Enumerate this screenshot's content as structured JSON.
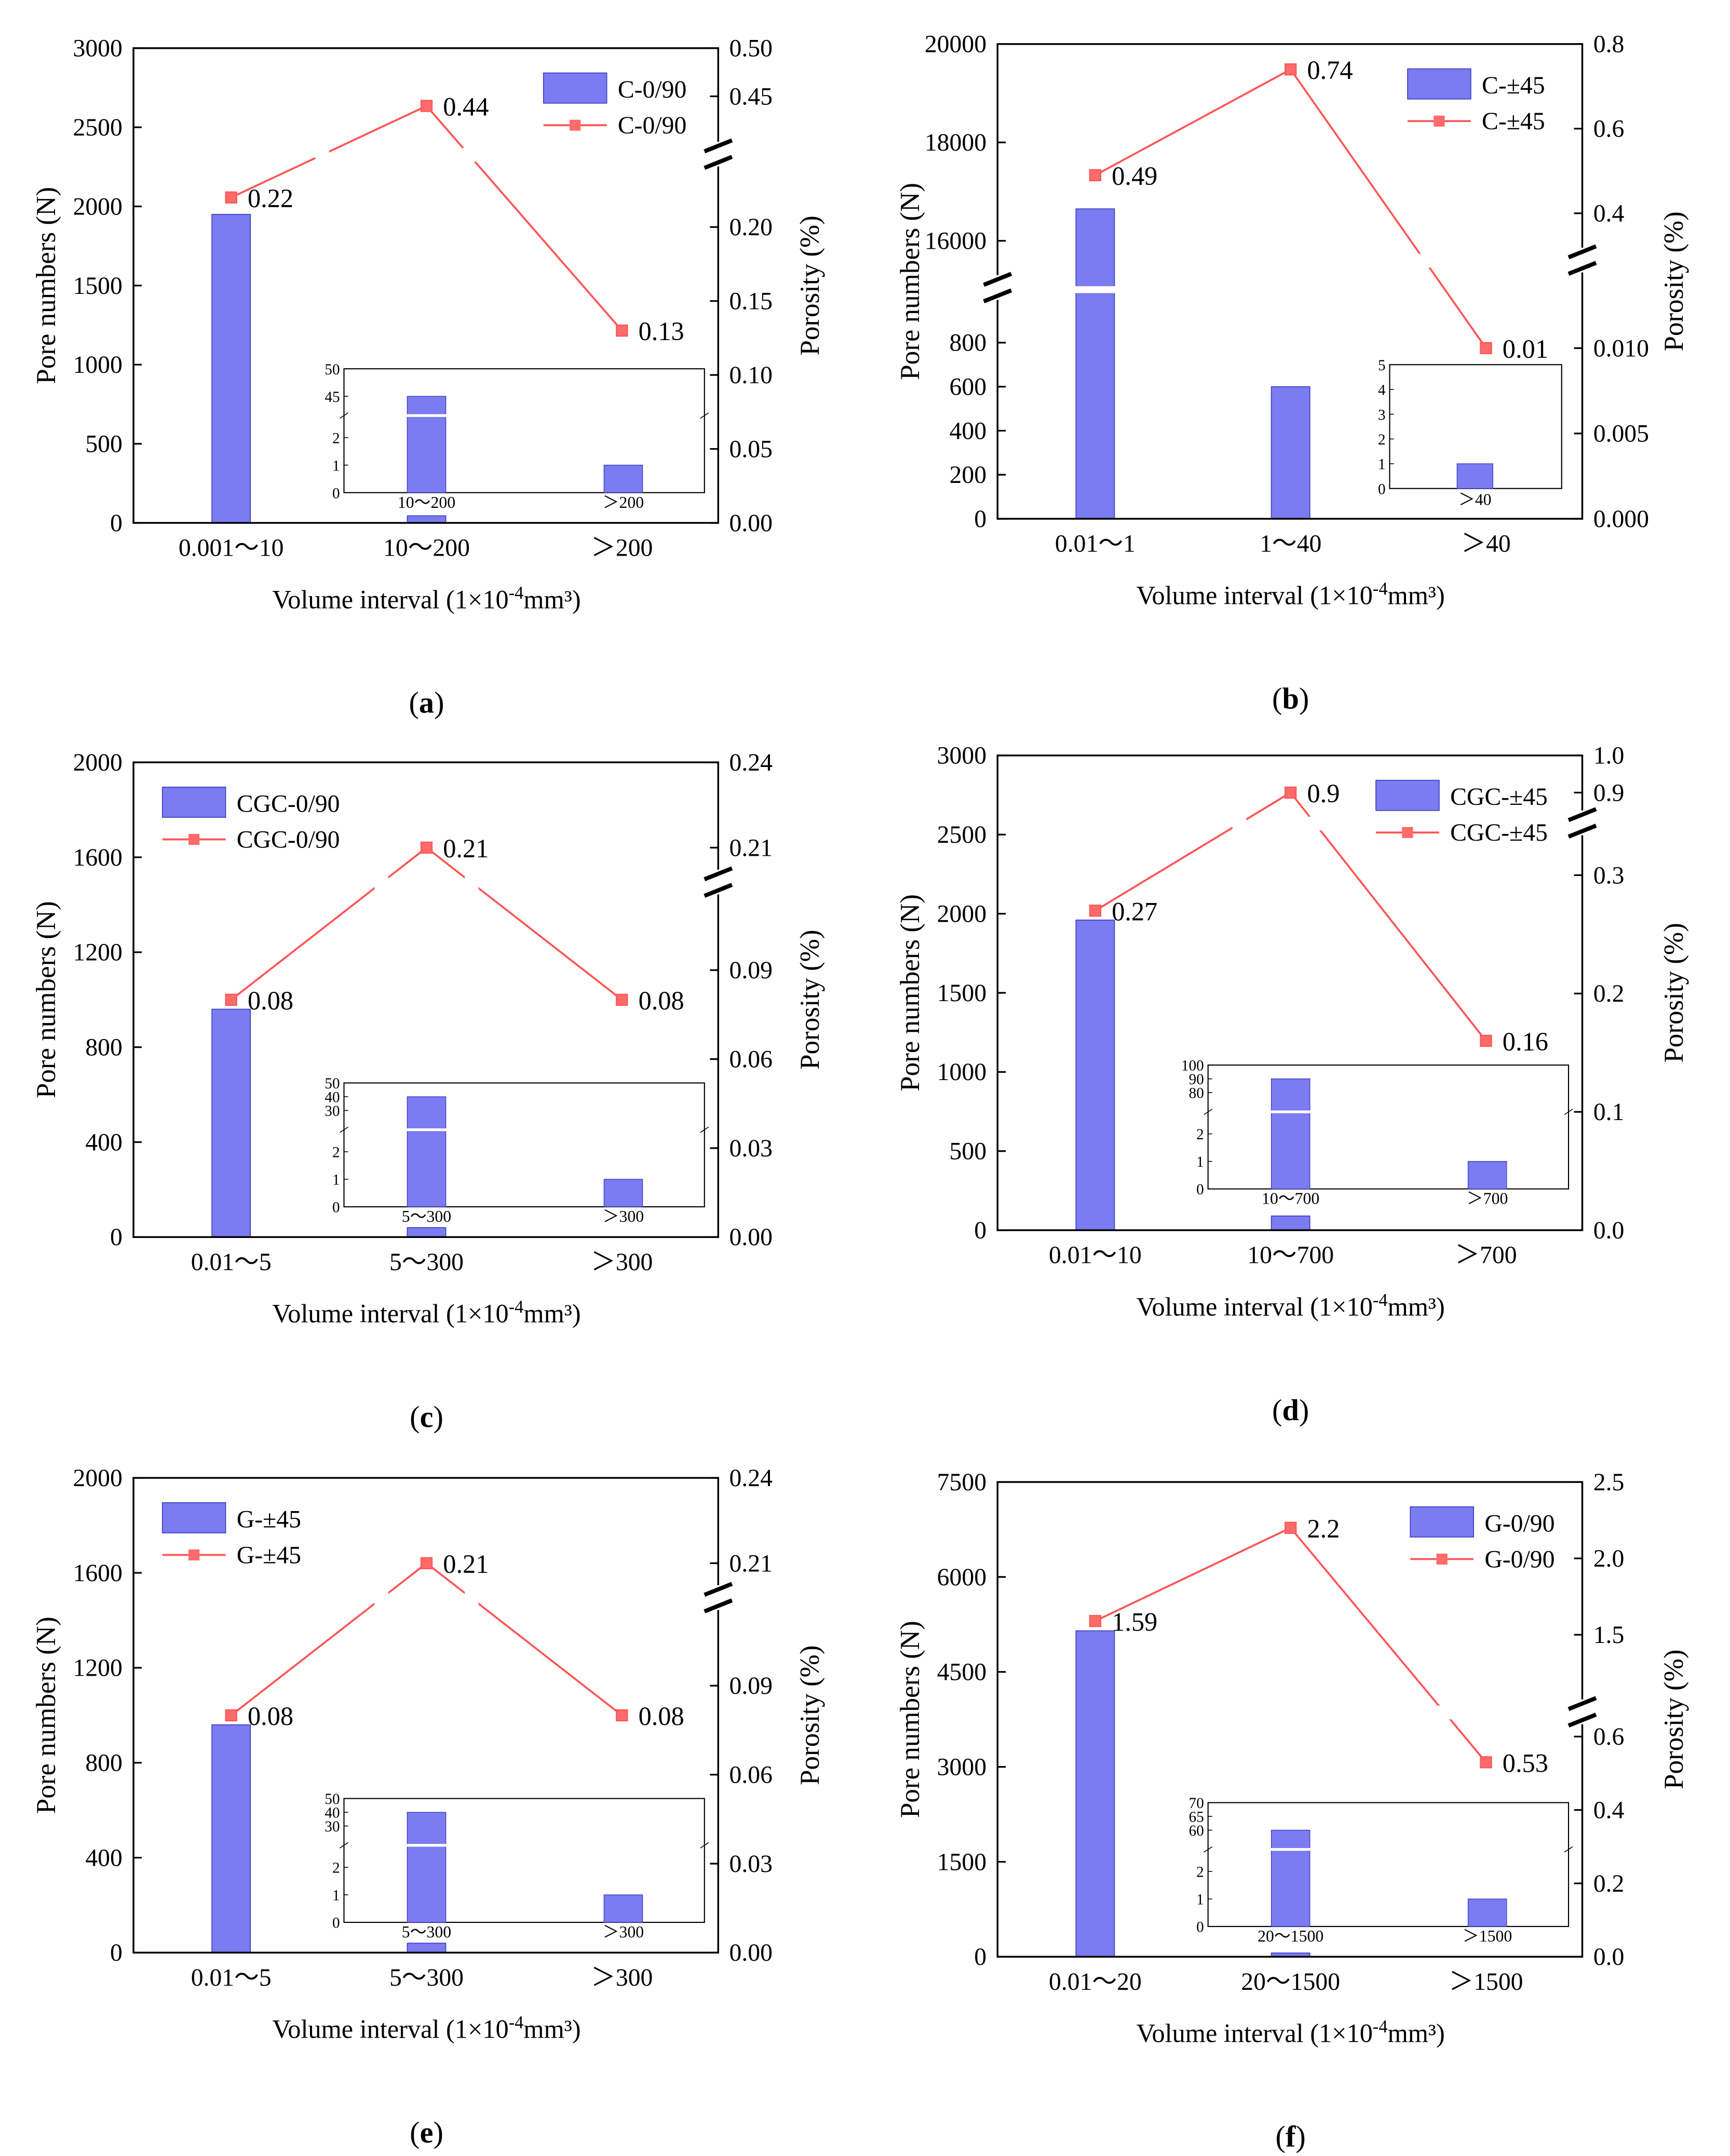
{
  "figure": {
    "xlabel_prefix": "Volume interval (1×10",
    "xlabel_exp": "-4",
    "xlabel_suffix": "mm³)",
    "ylabel_left": "Pore numbers (N)",
    "ylabel_right": "Porosity (%)"
  },
  "colors": {
    "bar": "#7b7bf2",
    "bar_stroke": "#3a3ac0",
    "line": "#ff5555",
    "marker": "#ff6a6a"
  },
  "chart_data": [
    {
      "type": "bar",
      "id": "a",
      "panel_label": "a",
      "categories": [
        "0.001～10",
        "10～200",
        "＞200"
      ],
      "bar_values": [
        1950,
        45,
        1
      ],
      "line_values": [
        0.22,
        0.44,
        0.13
      ],
      "line_labels": [
        "0.22",
        "0.44",
        "0.13"
      ],
      "legend": [
        "C-0/90",
        "C-0/90"
      ],
      "left_ticks": [
        "0",
        "500",
        "1000",
        "1500",
        "2000",
        "2500",
        "3000"
      ],
      "right_ticks_low": [
        "0.00",
        "0.05",
        "0.10",
        "0.15",
        "0.20"
      ],
      "right_ticks_high": [
        "0.45",
        "0.50"
      ],
      "inset": {
        "categories": [
          "10～200",
          "＞200"
        ],
        "values": [
          45,
          1
        ],
        "ticks_low": [
          "0",
          "1",
          "2"
        ],
        "ticks_high": [
          "45",
          "50"
        ]
      }
    },
    {
      "type": "bar",
      "id": "b",
      "panel_label": "b",
      "categories": [
        "0.01～1",
        "1～40",
        "＞40"
      ],
      "bar_values": [
        16650,
        600,
        1
      ],
      "line_values": [
        0.49,
        0.74,
        0.01
      ],
      "line_labels": [
        "0.49",
        "0.74",
        "0.01"
      ],
      "legend": [
        "C-±45",
        "C-±45"
      ],
      "left_ticks_low": [
        "0",
        "200",
        "400",
        "600",
        "800"
      ],
      "left_ticks_high": [
        "16000",
        "18000",
        "20000"
      ],
      "right_ticks_low": [
        "0.000",
        "0.005",
        "0.010"
      ],
      "right_ticks_high": [
        "0.4",
        "0.6",
        "0.8"
      ],
      "inset": {
        "categories": [
          "＞40"
        ],
        "values": [
          1
        ],
        "ticks": [
          "0",
          "1",
          "2",
          "3",
          "4",
          "5"
        ]
      }
    },
    {
      "type": "bar",
      "id": "c",
      "panel_label": "c",
      "categories": [
        "0.01～5",
        "5～300",
        "＞300"
      ],
      "bar_values": [
        960,
        40,
        1
      ],
      "line_values": [
        0.08,
        0.21,
        0.08
      ],
      "line_labels": [
        "0.08",
        "0.21",
        "0.08"
      ],
      "legend": [
        "CGC-0/90",
        "CGC-0/90"
      ],
      "left_ticks": [
        "0",
        "400",
        "800",
        "1200",
        "1600",
        "2000"
      ],
      "right_ticks_low": [
        "0.00",
        "0.03",
        "0.06",
        "0.09"
      ],
      "right_ticks_high": [
        "0.21",
        "0.24"
      ],
      "inset": {
        "categories": [
          "5～300",
          "＞300"
        ],
        "values": [
          40,
          1
        ],
        "ticks_low": [
          "0",
          "1",
          "2"
        ],
        "ticks_high": [
          "30",
          "40",
          "50"
        ]
      }
    },
    {
      "type": "bar",
      "id": "d",
      "panel_label": "d",
      "categories": [
        "0.01～10",
        "10～700",
        "＞700"
      ],
      "bar_values": [
        1960,
        90,
        1
      ],
      "line_values": [
        0.27,
        0.9,
        0.16
      ],
      "line_labels": [
        "0.27",
        "0.9",
        "0.16"
      ],
      "legend": [
        "CGC-±45",
        "CGC-±45"
      ],
      "left_ticks": [
        "0",
        "500",
        "1000",
        "1500",
        "2000",
        "2500",
        "3000"
      ],
      "right_ticks_low": [
        "0.0",
        "0.1",
        "0.2",
        "0.3"
      ],
      "right_ticks_high": [
        "0.9",
        "1.0"
      ],
      "inset": {
        "categories": [
          "10～700",
          "＞700"
        ],
        "values": [
          90,
          1
        ],
        "ticks_low": [
          "0",
          "1",
          "2"
        ],
        "ticks_high": [
          "80",
          "90",
          "100"
        ]
      }
    },
    {
      "type": "bar",
      "id": "e",
      "panel_label": "e",
      "categories": [
        "0.01～5",
        "5～300",
        "＞300"
      ],
      "bar_values": [
        960,
        40,
        1
      ],
      "line_values": [
        0.08,
        0.21,
        0.08
      ],
      "line_labels": [
        "0.08",
        "0.21",
        "0.08"
      ],
      "legend": [
        "G-±45",
        "G-±45"
      ],
      "left_ticks": [
        "0",
        "400",
        "800",
        "1200",
        "1600",
        "2000"
      ],
      "right_ticks_low": [
        "0.00",
        "0.03",
        "0.06",
        "0.09"
      ],
      "right_ticks_high": [
        "0.21",
        "0.24"
      ],
      "inset": {
        "categories": [
          "5～300",
          "＞300"
        ],
        "values": [
          40,
          1
        ],
        "ticks_low": [
          "0",
          "1",
          "2"
        ],
        "ticks_high": [
          "30",
          "40",
          "50"
        ]
      }
    },
    {
      "type": "bar",
      "id": "f",
      "panel_label": "f",
      "categories": [
        "0.01～20",
        "20～1500",
        "＞1500"
      ],
      "bar_values": [
        5150,
        60,
        1
      ],
      "line_values": [
        1.59,
        2.2,
        0.53
      ],
      "line_labels": [
        "1.59",
        "2.2",
        "0.53"
      ],
      "legend": [
        "G-0/90",
        "G-0/90"
      ],
      "left_ticks": [
        "0",
        "1500",
        "3000",
        "4500",
        "6000",
        "7500"
      ],
      "right_ticks_low": [
        "0.0",
        "0.2",
        "0.4",
        "0.6"
      ],
      "right_ticks_high": [
        "1.5",
        "2.0",
        "2.5"
      ],
      "inset": {
        "categories": [
          "20～1500",
          "＞1500"
        ],
        "values": [
          60,
          1
        ],
        "ticks_low": [
          "0",
          "1",
          "2"
        ],
        "ticks_high": [
          "60",
          "65",
          "70"
        ]
      }
    }
  ]
}
